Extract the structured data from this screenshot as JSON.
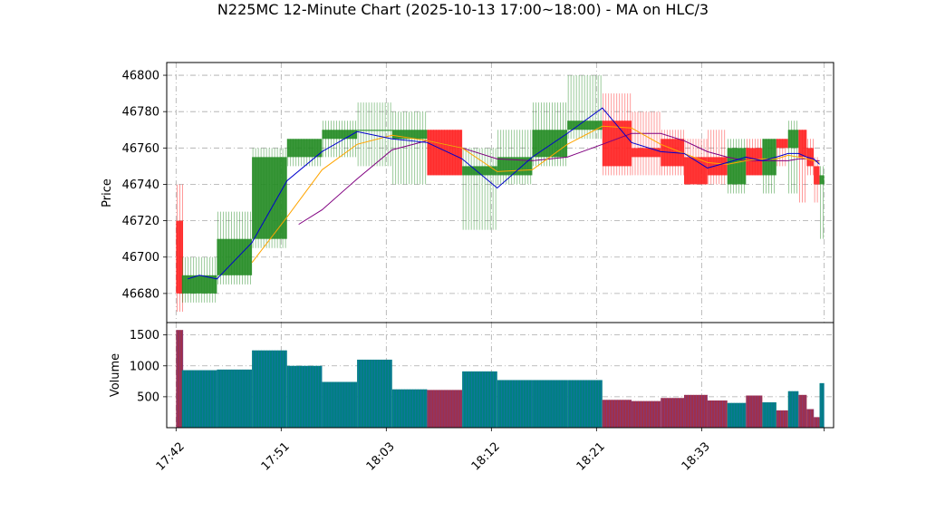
{
  "chart_data": {
    "type": "candlestick",
    "title": "N225MC 12-Minute Chart (2025-10-13 17:00~18:00) - MA on HLC/3",
    "price_panel": {
      "ylabel": "Price",
      "ylim": [
        46664,
        46807
      ],
      "yticks": [
        46680,
        46700,
        46720,
        46740,
        46760,
        46780,
        46800
      ],
      "grid": true
    },
    "volume_panel": {
      "ylabel": "Volume",
      "ylim": [
        0,
        1700
      ],
      "yticks": [
        500,
        1000,
        1500
      ],
      "grid": true
    },
    "x_tick_labels": [
      "17:42",
      "17:51",
      "18:03",
      "18:12",
      "18:21",
      "18:33"
    ],
    "x_tick_positions": [
      0,
      9,
      18,
      27,
      36,
      45
    ],
    "xlim": [
      -0.8,
      56.3
    ],
    "colors": {
      "up": "#228b22",
      "down": "#ff2020",
      "vol_up": "#008080",
      "vol_down": "#a0304a",
      "ma_fast": "#0000cd",
      "ma_mid": "#ffa500",
      "ma_slow": "#800080"
    },
    "candles": [
      {
        "x": 0,
        "w": 0.6,
        "o": 46720,
        "h": 46740,
        "l": 46670,
        "c": 46680,
        "v": 1580
      },
      {
        "x": 0.5,
        "w": 3.0,
        "o": 46680,
        "h": 46700,
        "l": 46675,
        "c": 46690,
        "v": 930
      },
      {
        "x": 3.5,
        "w": 3.0,
        "o": 46690,
        "h": 46725,
        "l": 46685,
        "c": 46710,
        "v": 940
      },
      {
        "x": 6.5,
        "w": 3.0,
        "o": 46710,
        "h": 46760,
        "l": 46705,
        "c": 46755,
        "v": 1250
      },
      {
        "x": 9.5,
        "w": 3.0,
        "o": 46755,
        "h": 46765,
        "l": 46750,
        "c": 46765,
        "v": 1000
      },
      {
        "x": 12.5,
        "w": 3.0,
        "o": 46765,
        "h": 46775,
        "l": 46755,
        "c": 46770,
        "v": 740
      },
      {
        "x": 15.5,
        "w": 3.0,
        "o": 46770,
        "h": 46785,
        "l": 46750,
        "c": 46770,
        "v": 1100
      },
      {
        "x": 18.5,
        "w": 3.0,
        "o": 46765,
        "h": 46780,
        "l": 46740,
        "c": 46770,
        "v": 620
      },
      {
        "x": 21.5,
        "w": 3.0,
        "o": 46770,
        "h": 46770,
        "l": 46745,
        "c": 46745,
        "v": 610
      },
      {
        "x": 24.5,
        "w": 3.0,
        "o": 46745,
        "h": 46760,
        "l": 46715,
        "c": 46750,
        "v": 910
      },
      {
        "x": 27.5,
        "w": 3.0,
        "o": 46745,
        "h": 46770,
        "l": 46740,
        "c": 46755,
        "v": 770
      },
      {
        "x": 30.5,
        "w": 3.0,
        "o": 46755,
        "h": 46785,
        "l": 46750,
        "c": 46770,
        "v": 770
      },
      {
        "x": 33.5,
        "w": 3.0,
        "o": 46770,
        "h": 46800,
        "l": 46765,
        "c": 46775,
        "v": 770
      },
      {
        "x": 36.5,
        "w": 2.5,
        "o": 46775,
        "h": 46790,
        "l": 46745,
        "c": 46750,
        "v": 450
      },
      {
        "x": 39.0,
        "w": 2.5,
        "o": 46760,
        "h": 46780,
        "l": 46745,
        "c": 46755,
        "v": 430
      },
      {
        "x": 41.5,
        "w": 2.0,
        "o": 46765,
        "h": 46770,
        "l": 46745,
        "c": 46750,
        "v": 480
      },
      {
        "x": 43.5,
        "w": 2.0,
        "o": 46755,
        "h": 46765,
        "l": 46740,
        "c": 46740,
        "v": 530
      },
      {
        "x": 45.5,
        "w": 1.7,
        "o": 46755,
        "h": 46770,
        "l": 46740,
        "c": 46745,
        "v": 440
      },
      {
        "x": 47.2,
        "w": 1.6,
        "o": 46740,
        "h": 46765,
        "l": 46735,
        "c": 46760,
        "v": 400
      },
      {
        "x": 48.8,
        "w": 1.4,
        "o": 46760,
        "h": 46765,
        "l": 46745,
        "c": 46745,
        "v": 520
      },
      {
        "x": 50.2,
        "w": 1.2,
        "o": 46745,
        "h": 46765,
        "l": 46735,
        "c": 46765,
        "v": 410
      },
      {
        "x": 51.4,
        "w": 1.0,
        "o": 46765,
        "h": 46765,
        "l": 46750,
        "c": 46760,
        "v": 280
      },
      {
        "x": 52.4,
        "w": 0.9,
        "o": 46760,
        "h": 46775,
        "l": 46735,
        "c": 46770,
        "v": 590
      },
      {
        "x": 53.3,
        "w": 0.7,
        "o": 46770,
        "h": 46770,
        "l": 46730,
        "c": 46755,
        "v": 530
      },
      {
        "x": 54.0,
        "w": 0.6,
        "o": 46760,
        "h": 46765,
        "l": 46745,
        "c": 46750,
        "v": 300
      },
      {
        "x": 54.6,
        "w": 0.5,
        "o": 46750,
        "h": 46755,
        "l": 46730,
        "c": 46740,
        "v": 170
      },
      {
        "x": 55.1,
        "w": 0.4,
        "o": 46740,
        "h": 46750,
        "l": 46710,
        "c": 46745,
        "v": 720
      }
    ],
    "ma_fast": {
      "x": [
        1,
        2,
        3.5,
        6.5,
        9.5,
        12.5,
        15.5,
        18.5,
        21.5,
        24.5,
        27.5,
        30.5,
        33.5,
        36.5,
        39.0,
        41.5,
        43.5,
        45.5,
        47.2,
        48.8,
        50.2,
        51.4,
        52.4,
        53.3,
        54.0,
        54.6,
        55.1
      ],
      "y": [
        46688,
        46690,
        46688,
        46708,
        46742,
        46758,
        46769,
        46765,
        46763,
        46754,
        46738,
        46755,
        46768,
        46782,
        46763,
        46758,
        46757,
        46749,
        46752,
        46755,
        46753,
        46755,
        46757,
        46757,
        46755,
        46754,
        46751
      ]
    },
    "ma_mid": {
      "x": [
        6.5,
        9.5,
        12.5,
        15.5,
        18.5,
        21.5,
        24.5,
        27.5,
        30.5,
        33.5,
        36.5,
        39.0,
        41.5,
        43.5,
        45.5,
        47.2,
        48.8,
        50.2,
        51.4,
        52.4,
        53.3,
        54.0,
        54.6,
        55.1
      ],
      "y": [
        46697,
        46722,
        46748,
        46762,
        46767,
        46764,
        46760,
        46747,
        46748,
        46762,
        46772,
        46771,
        46762,
        46757,
        46752,
        46751,
        46753,
        46754,
        46754,
        46756,
        46755,
        46754,
        46753,
        46752
      ]
    },
    "ma_slow": {
      "x": [
        10.5,
        12.5,
        15.5,
        18.5,
        21.5,
        24.5,
        27.5,
        30.5,
        33.5,
        36.5,
        39.0,
        41.5,
        43.5,
        45.5,
        47.2,
        48.8,
        50.2,
        51.4,
        52.4,
        53.3,
        54.0,
        54.6,
        55.1
      ],
      "y": [
        46718,
        46726,
        46743,
        46759,
        46764,
        46760,
        46754,
        46753,
        46755,
        46762,
        46768,
        46768,
        46764,
        46758,
        46755,
        46753,
        46753,
        46753,
        46753,
        46754,
        46754,
        46753,
        46753
      ]
    }
  }
}
